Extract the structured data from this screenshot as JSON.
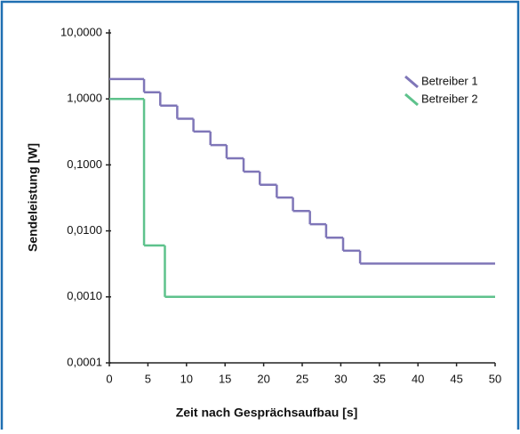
{
  "chart_data": {
    "type": "line",
    "step": "post",
    "x_label": "Zeit nach Gesprächsaufbau [s]",
    "y_label": "Sendeleistung [W]",
    "y_log": true,
    "xlim": [
      0,
      50
    ],
    "xticks": [
      0,
      5,
      10,
      15,
      20,
      25,
      30,
      35,
      40,
      45,
      50
    ],
    "ylim": [
      0.0001,
      10
    ],
    "yticks": [
      {
        "value": 0.0001,
        "label": "0,0001"
      },
      {
        "value": 0.001,
        "label": "0,0010"
      },
      {
        "value": 0.01,
        "label": "0,0100"
      },
      {
        "value": 0.1,
        "label": "0,1000"
      },
      {
        "value": 1,
        "label": "1,0000"
      },
      {
        "value": 10,
        "label": "10,0000"
      }
    ],
    "legend": "upper right",
    "series": [
      {
        "name": "Betreiber 1",
        "color": "#7f76b8",
        "x": [
          0,
          4.5,
          6.6,
          8.8,
          10.9,
          13.1,
          15.2,
          17.4,
          19.5,
          21.7,
          23.8,
          26,
          28.1,
          30.3,
          32.5,
          50
        ],
        "values": [
          2,
          1.26,
          0.79,
          0.5,
          0.32,
          0.2,
          0.126,
          0.079,
          0.05,
          0.032,
          0.02,
          0.0126,
          0.0079,
          0.005,
          0.0032,
          0.0032
        ]
      },
      {
        "name": "Betreiber 2",
        "color": "#5ec28c",
        "x": [
          0,
          4.5,
          7.2,
          50
        ],
        "values": [
          1,
          0.006,
          0.001,
          0.001
        ]
      }
    ]
  }
}
